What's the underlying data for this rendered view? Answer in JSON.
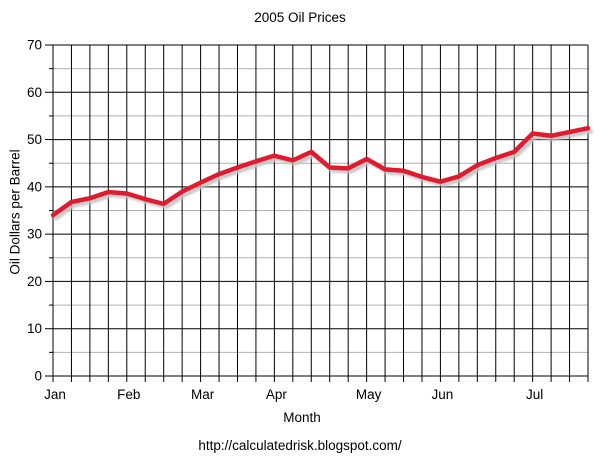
{
  "page": {
    "footer_url": "http://calculatedrisk.blogspot.com/"
  },
  "chart_data": {
    "type": "line",
    "title": "2005 Oil Prices",
    "xlabel": "Month",
    "ylabel": "Oil Dollars per Barrel",
    "ylim": [
      0,
      70
    ],
    "ytick_major_step": 10,
    "ytick_minor_step": 5,
    "grid": "on",
    "legend": "none",
    "x_weeks": 30,
    "month_labels": [
      "Jan",
      "Feb",
      "Mar",
      "Apr",
      "May",
      "Jun",
      "Jul"
    ],
    "month_label_week_positions": [
      0,
      4,
      8,
      12,
      17,
      21,
      26
    ],
    "series": [
      {
        "name": "oil-price-weekly",
        "values": [
          34.0,
          36.8,
          37.6,
          38.9,
          38.6,
          37.4,
          36.4,
          39.0,
          40.9,
          42.7,
          44.1,
          45.4,
          46.6,
          45.6,
          47.4,
          44.1,
          43.9,
          45.9,
          43.7,
          43.4,
          42.1,
          41.1,
          42.2,
          44.6,
          46.1,
          47.4,
          51.3,
          50.8,
          51.6,
          52.4
        ]
      }
    ],
    "colors": {
      "line": "#df1b2f",
      "shadow": "#c2c2c2",
      "grid_major": "#000000",
      "grid_minor": "#b0b0b0",
      "text": "#000000",
      "background": "#ffffff"
    }
  }
}
